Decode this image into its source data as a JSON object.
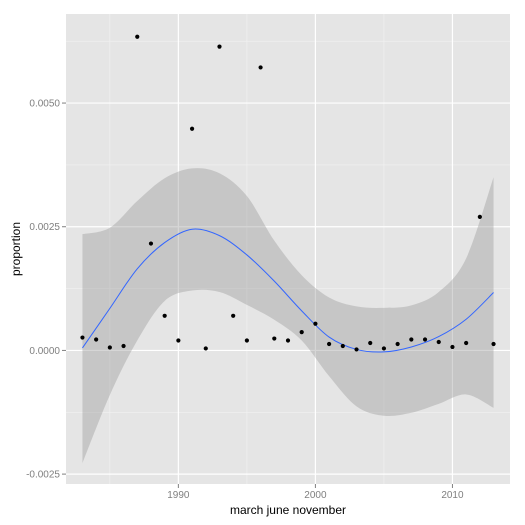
{
  "chart_data": {
    "type": "scatter",
    "xlabel": "march june november",
    "ylabel": "proportion",
    "xlim": [
      1981.8,
      2014.2
    ],
    "ylim": [
      -0.0027,
      0.0068
    ],
    "x_ticks": [
      1990,
      2000,
      2010
    ],
    "x_tick_labels": [
      "1990",
      "2000",
      "2010"
    ],
    "y_ticks": [
      -0.0025,
      0.0,
      0.0025,
      0.005
    ],
    "y_tick_labels": [
      "-0.0025",
      "0.0000",
      "0.0025",
      "0.0050"
    ],
    "grid": true,
    "colors": {
      "panel": "#e5e5e5",
      "grid_major": "#ffffff",
      "grid_minor": "#f2f2f2",
      "points": "#000000",
      "smooth_line": "#3366ff",
      "ribbon": "#999999"
    },
    "points": [
      {
        "x": 1983,
        "y": 0.00026
      },
      {
        "x": 1984,
        "y": 0.00022
      },
      {
        "x": 1985,
        "y": 6e-05
      },
      {
        "x": 1986,
        "y": 9e-05
      },
      {
        "x": 1987,
        "y": 0.00634
      },
      {
        "x": 1988,
        "y": 0.00216
      },
      {
        "x": 1989,
        "y": 0.0007
      },
      {
        "x": 1990,
        "y": 0.0002
      },
      {
        "x": 1991,
        "y": 0.00448
      },
      {
        "x": 1992,
        "y": 4e-05
      },
      {
        "x": 1993,
        "y": 0.00614
      },
      {
        "x": 1994,
        "y": 0.0007
      },
      {
        "x": 1995,
        "y": 0.0002
      },
      {
        "x": 1996,
        "y": 0.00572
      },
      {
        "x": 1997,
        "y": 0.00024
      },
      {
        "x": 1998,
        "y": 0.0002
      },
      {
        "x": 1999,
        "y": 0.00037
      },
      {
        "x": 2000,
        "y": 0.00054
      },
      {
        "x": 2001,
        "y": 0.00013
      },
      {
        "x": 2002,
        "y": 9e-05
      },
      {
        "x": 2003,
        "y": 2e-05
      },
      {
        "x": 2004,
        "y": 0.00015
      },
      {
        "x": 2005,
        "y": 4e-05
      },
      {
        "x": 2006,
        "y": 0.00013
      },
      {
        "x": 2007,
        "y": 0.00022
      },
      {
        "x": 2008,
        "y": 0.00022
      },
      {
        "x": 2009,
        "y": 0.00017
      },
      {
        "x": 2010,
        "y": 7e-05
      },
      {
        "x": 2011,
        "y": 0.00015
      },
      {
        "x": 2012,
        "y": 0.0027
      },
      {
        "x": 2013,
        "y": 0.00013
      }
    ],
    "smooth": {
      "x": [
        1983,
        1985,
        1987,
        1989,
        1991,
        1993,
        1995,
        1997,
        1999,
        2001,
        2003,
        2005,
        2007,
        2009,
        2011,
        2013
      ],
      "y": [
        5e-05,
        0.00085,
        0.00165,
        0.00218,
        0.00245,
        0.00232,
        0.00193,
        0.0014,
        0.0008,
        0.00027,
        2e-05,
        -3e-05,
        7e-05,
        0.00028,
        0.00063,
        0.00117
      ],
      "lower": [
        -0.00228,
        -0.0009,
        0.0002,
        0.001,
        0.00121,
        0.00118,
        0.00092,
        0.00062,
        0.0002,
        -0.00052,
        -0.00113,
        -0.00132,
        -0.00126,
        -0.00108,
        -0.00089,
        -0.00116
      ],
      "upper": [
        0.00235,
        0.00248,
        0.00302,
        0.00348,
        0.00368,
        0.00358,
        0.00312,
        0.00222,
        0.00152,
        0.00107,
        0.00089,
        0.00086,
        0.00091,
        0.00118,
        0.00186,
        0.0035
      ]
    }
  }
}
